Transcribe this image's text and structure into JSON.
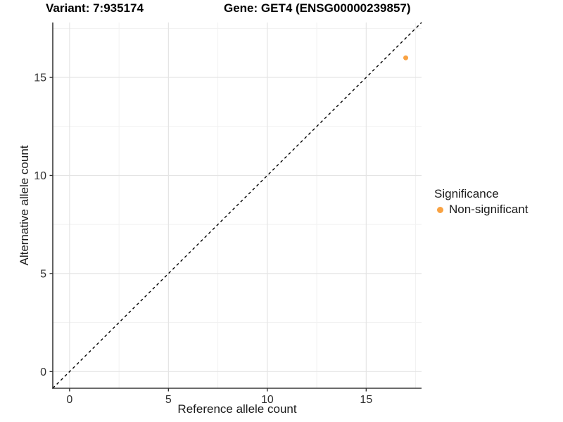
{
  "chart_data": {
    "type": "scatter",
    "titles": {
      "left": "Variant: 7:935174",
      "right": "Gene: GET4 (ENSG00000239857)"
    },
    "xlabel": "Reference allele count",
    "ylabel": "Alternative allele count",
    "xlim": [
      -0.85,
      17.8
    ],
    "ylim": [
      -0.85,
      17.8
    ],
    "xticks": [
      0,
      5,
      10,
      15
    ],
    "yticks": [
      0,
      5,
      10,
      15
    ],
    "xticks_minor": [
      2.5,
      7.5,
      12.5,
      17.5
    ],
    "yticks_minor": [
      2.5,
      7.5,
      12.5,
      17.5
    ],
    "grid": "major_and_minor",
    "points": [
      {
        "x": 17,
        "y": 16,
        "series": "Non-significant"
      }
    ],
    "identity_line": {
      "style": "dashed",
      "slope": 1,
      "intercept": 0
    },
    "legend": {
      "title": "Significance",
      "position": "right",
      "items": [
        {
          "label": "Non-significant",
          "color": "#F9A242"
        }
      ]
    }
  },
  "colors": {
    "point": "#F9A242",
    "grid_major": "#E4E4E4",
    "grid_minor": "#F1F1F1",
    "axis_line": "#3A3A3A",
    "tick_mark": "#333333",
    "identity_line": "#000000",
    "background": "#FFFFFF"
  }
}
